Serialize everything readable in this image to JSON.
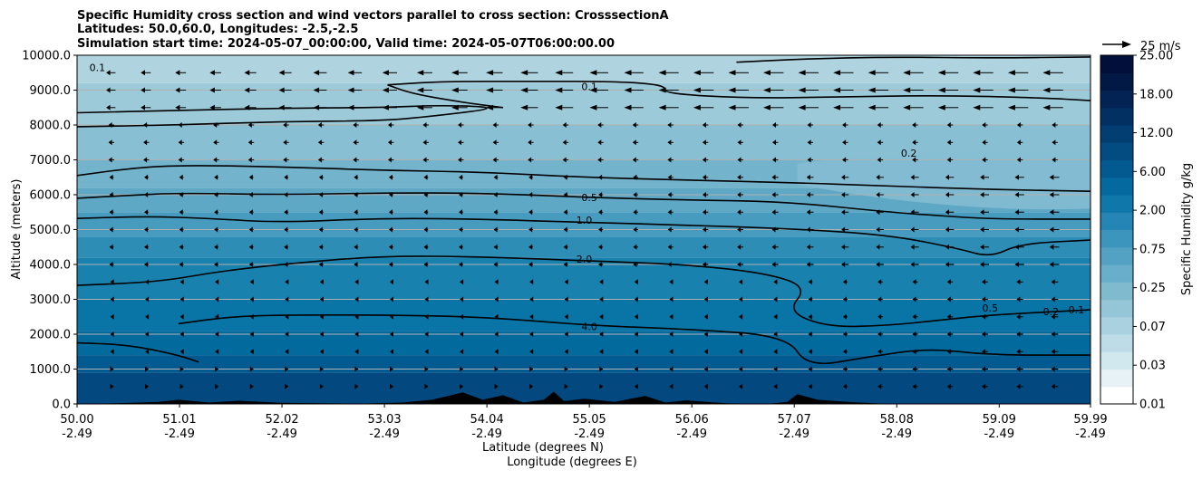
{
  "chart_data": {
    "type": "contourf",
    "title_lines": [
      "Specific Humidity cross section and wind vectors parallel to cross section: CrosssectionA",
      "Latitudes: 50.0,60.0, Longitudes: -2.5,-2.5",
      "Simulation start time: 2024-05-07_00:00:00, Valid time: 2024-05-07T06:00:00.00"
    ],
    "xlabel_lat": "Latitude (degrees N)",
    "xlabel_lon": "Longitude (degrees E)",
    "ylabel": "Altitude (meters)",
    "colorbar_label": "Specific Humidity g/kg",
    "quiver_key": "25 m/s",
    "xlim": [
      50.0,
      59.99
    ],
    "ylim": [
      0,
      10000
    ],
    "x_ticks": [
      {
        "lat": "50.00",
        "lon": "-2.49"
      },
      {
        "lat": "51.01",
        "lon": "-2.49"
      },
      {
        "lat": "52.02",
        "lon": "-2.49"
      },
      {
        "lat": "53.03",
        "lon": "-2.49"
      },
      {
        "lat": "54.04",
        "lon": "-2.49"
      },
      {
        "lat": "55.05",
        "lon": "-2.49"
      },
      {
        "lat": "56.06",
        "lon": "-2.49"
      },
      {
        "lat": "57.07",
        "lon": "-2.49"
      },
      {
        "lat": "58.08",
        "lon": "-2.49"
      },
      {
        "lat": "59.09",
        "lon": "-2.49"
      },
      {
        "lat": "59.99",
        "lon": "-2.49"
      }
    ],
    "y_ticks": [
      "0.0",
      "1000.0",
      "2000.0",
      "3000.0",
      "4000.0",
      "5000.0",
      "6000.0",
      "7000.0",
      "8000.0",
      "9000.0",
      "10000.0"
    ],
    "colorbar_ticks": [
      "0.01",
      "0.03",
      "0.07",
      "0.25",
      "0.75",
      "2.00",
      "6.00",
      "12.00",
      "18.00",
      "25.00"
    ],
    "colorbar_levels": [
      "#ffffff",
      "#e6f2f5",
      "#d2e8ef",
      "#bddce7",
      "#a9d1df",
      "#94c6d7",
      "#7fbacf",
      "#69aecb",
      "#53a2c4",
      "#3c95bd",
      "#2586b5",
      "#1077aa",
      "#03699f",
      "#035a91",
      "#034c82",
      "#033e73",
      "#023063",
      "#022354",
      "#021845",
      "#010f3a"
    ],
    "contours": [
      {
        "label": "0.1",
        "points": [
          [
            50.0,
            8350
          ],
          [
            51.0,
            8420
          ],
          [
            52.0,
            8480
          ],
          [
            53.0,
            8500
          ],
          [
            53.6,
            8570
          ],
          [
            54.2,
            8500
          ],
          [
            53.5,
            8250
          ],
          [
            53.0,
            8120
          ],
          [
            52.0,
            8100
          ],
          [
            51.0,
            8000
          ],
          [
            50.0,
            7950
          ]
        ]
      },
      {
        "label": "0.1",
        "points": [
          [
            53.06,
            9150
          ],
          [
            53.6,
            9250
          ],
          [
            54.5,
            9250
          ],
          [
            55.2,
            9250
          ],
          [
            55.6,
            9200
          ],
          [
            55.8,
            9100
          ],
          [
            55.8,
            8900
          ],
          [
            56.6,
            8770
          ],
          [
            57.5,
            8800
          ],
          [
            58.5,
            8850
          ],
          [
            59.5,
            8780
          ],
          [
            59.99,
            8700
          ]
        ]
      },
      {
        "label": "0.1",
        "points": [
          [
            53.06,
            9150
          ],
          [
            53.3,
            8900
          ],
          [
            53.8,
            8650
          ],
          [
            54.2,
            8500
          ]
        ]
      },
      {
        "label": "0.1",
        "points": [
          [
            56.5,
            9800
          ],
          [
            57.2,
            9900
          ],
          [
            58.0,
            9950
          ],
          [
            59.0,
            9920
          ],
          [
            59.99,
            9950
          ]
        ]
      },
      {
        "label": "0.2",
        "points": [
          [
            50.0,
            6550
          ],
          [
            50.5,
            6750
          ],
          [
            51.0,
            6850
          ],
          [
            52.0,
            6800
          ],
          [
            53.0,
            6700
          ],
          [
            54.0,
            6650
          ],
          [
            55.0,
            6500
          ],
          [
            56.0,
            6420
          ],
          [
            57.0,
            6350
          ],
          [
            58.0,
            6250
          ],
          [
            59.0,
            6150
          ],
          [
            59.99,
            6100
          ]
        ]
      },
      {
        "label": "0.5",
        "points": [
          [
            50.0,
            5900
          ],
          [
            50.5,
            5980
          ],
          [
            51.0,
            6050
          ],
          [
            52.0,
            6000
          ],
          [
            53.0,
            6050
          ],
          [
            54.0,
            6050
          ],
          [
            55.05,
            5920
          ],
          [
            56.0,
            5850
          ],
          [
            57.0,
            5800
          ],
          [
            58.0,
            5500
          ],
          [
            58.5,
            5400
          ],
          [
            59.0,
            5300
          ],
          [
            59.99,
            5300
          ]
        ]
      },
      {
        "label": "1.0",
        "points": [
          [
            50.0,
            5320
          ],
          [
            50.7,
            5380
          ],
          [
            51.3,
            5320
          ],
          [
            52.0,
            5200
          ],
          [
            53.0,
            5330
          ],
          [
            54.0,
            5300
          ],
          [
            55.05,
            5200
          ],
          [
            56.0,
            5130
          ],
          [
            57.0,
            5030
          ],
          [
            58.0,
            4850
          ],
          [
            58.7,
            4450
          ],
          [
            59.0,
            4200
          ],
          [
            59.3,
            4600
          ],
          [
            59.99,
            4700
          ]
        ]
      },
      {
        "label": "2.0",
        "points": [
          [
            50.0,
            3400
          ],
          [
            50.8,
            3500
          ],
          [
            51.4,
            3800
          ],
          [
            52.0,
            4000
          ],
          [
            53.0,
            4250
          ],
          [
            54.0,
            4220
          ],
          [
            55.05,
            4100
          ],
          [
            56.0,
            4000
          ],
          [
            56.8,
            3750
          ],
          [
            57.2,
            3350
          ],
          [
            57.0,
            2650
          ],
          [
            57.4,
            2200
          ],
          [
            58.0,
            2250
          ],
          [
            58.5,
            2400
          ],
          [
            59.0,
            2550
          ],
          [
            59.99,
            2700
          ]
        ]
      },
      {
        "label": "4.0",
        "points": [
          [
            51.0,
            2300
          ],
          [
            51.5,
            2500
          ],
          [
            52.0,
            2550
          ],
          [
            53.0,
            2550
          ],
          [
            54.0,
            2500
          ],
          [
            55.05,
            2250
          ],
          [
            56.0,
            2150
          ],
          [
            57.0,
            1950
          ],
          [
            57.2,
            1050
          ],
          [
            57.8,
            1350
          ],
          [
            58.4,
            1600
          ],
          [
            59.0,
            1400
          ],
          [
            59.99,
            1400
          ]
        ]
      },
      {
        "label": "4.0",
        "points": [
          [
            50.0,
            1750
          ],
          [
            50.5,
            1700
          ],
          [
            51.0,
            1400
          ],
          [
            51.2,
            1200
          ]
        ]
      }
    ],
    "contour_labels": [
      {
        "text": "0.1",
        "x": 50.2,
        "y": 9650
      },
      {
        "text": "0.1",
        "x": 55.05,
        "y": 9100
      },
      {
        "text": "0.2",
        "x": 58.2,
        "y": 7200
      },
      {
        "text": "0.5",
        "x": 55.05,
        "y": 5920
      },
      {
        "text": "1.0",
        "x": 55.0,
        "y": 5270
      },
      {
        "text": "2.0",
        "x": 55.0,
        "y": 4150
      },
      {
        "text": "4.0",
        "x": 55.05,
        "y": 2220
      },
      {
        "text": "0.5",
        "x": 59.0,
        "y": 2750
      },
      {
        "text": "0.2",
        "x": 59.6,
        "y": 2650
      },
      {
        "text": "0.1",
        "x": 59.85,
        "y": 2700
      }
    ],
    "vector_columns": 28,
    "vector_rows": [
      500,
      1000,
      1500,
      2000,
      2500,
      3000,
      3500,
      4000,
      4500,
      5000,
      5500,
      6000,
      6500,
      7000,
      7500,
      8000,
      8500,
      9000,
      9500
    ]
  }
}
